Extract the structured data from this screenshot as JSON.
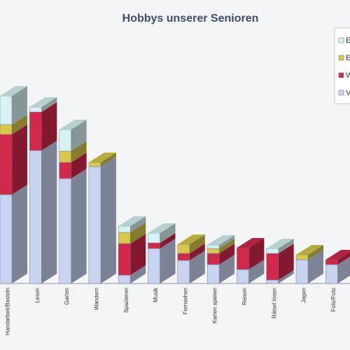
{
  "chart_data": {
    "type": "bar3d_stacked",
    "title": "Hobbys unserer Senioren",
    "categories": [
      "Handarbeit/Basteln",
      "Lesen",
      "Garten",
      "Wandern",
      "Spazieren",
      "Musik",
      "Fernsehen",
      "Karten spielen",
      "Reisen",
      "Rätsel lösen",
      "Jagen",
      "Foto/Foto"
    ],
    "series": [
      {
        "name": "V",
        "color": "#c9d3f2",
        "values": [
          127,
          190,
          150,
          167,
          12,
          50,
          33,
          27,
          20,
          5,
          34,
          27
        ]
      },
      {
        "name": "W",
        "color": "#d4284a",
        "values": [
          86,
          55,
          23,
          0,
          45,
          8,
          10,
          16,
          31,
          38,
          0,
          7
        ]
      },
      {
        "name": "E",
        "color": "#d9c84a",
        "values": [
          14,
          0,
          16,
          6,
          16,
          0,
          13,
          7,
          0,
          0,
          7,
          0
        ]
      },
      {
        "name": "E",
        "color": "#d6f3f4",
        "values": [
          41,
          7,
          31,
          0,
          9,
          14,
          0,
          5,
          0,
          7,
          0,
          0
        ]
      }
    ]
  }
}
